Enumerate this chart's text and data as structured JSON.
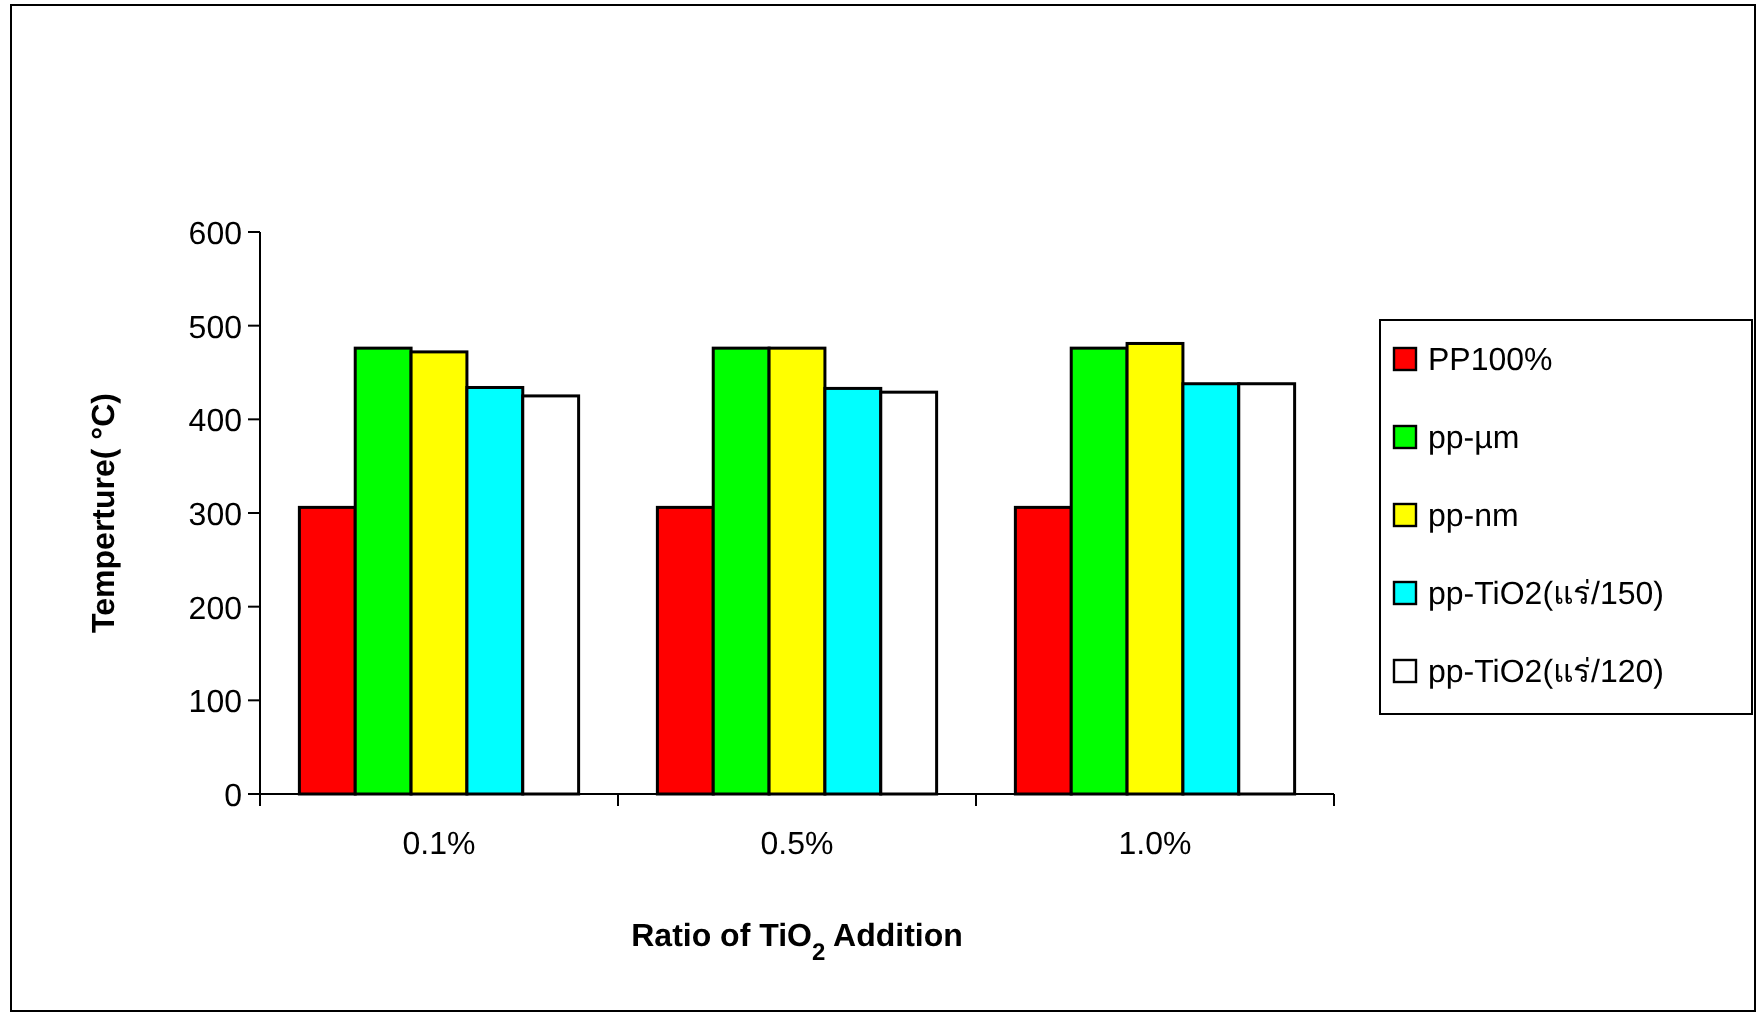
{
  "chart_data": {
    "type": "bar",
    "ylabel": "Temperture( °C)",
    "xlabel": "Ratio of TiO$_{2}$ Addition",
    "categories": [
      "0.1%",
      "0.5%",
      "1.0%"
    ],
    "ylim": [
      0,
      600
    ],
    "yticks": [
      0,
      100,
      200,
      300,
      400,
      500,
      600
    ],
    "grid": false,
    "legend": "right",
    "series": [
      {
        "name": "PP100%",
        "color": "#ff0000",
        "values": [
          306,
          306,
          306
        ]
      },
      {
        "name": "pp-µm",
        "color": "#00ff00",
        "values": [
          476,
          476,
          476
        ]
      },
      {
        "name": "pp-nm",
        "color": "#ffff00",
        "values": [
          472,
          476,
          481
        ]
      },
      {
        "name": "pp-TiO2(แร่/150)",
        "color": "#00ffff",
        "values": [
          434,
          433,
          438
        ]
      },
      {
        "name": "pp-TiO2(แร่/120)",
        "color": "#ffffff",
        "values": [
          425,
          429,
          438
        ]
      }
    ]
  }
}
